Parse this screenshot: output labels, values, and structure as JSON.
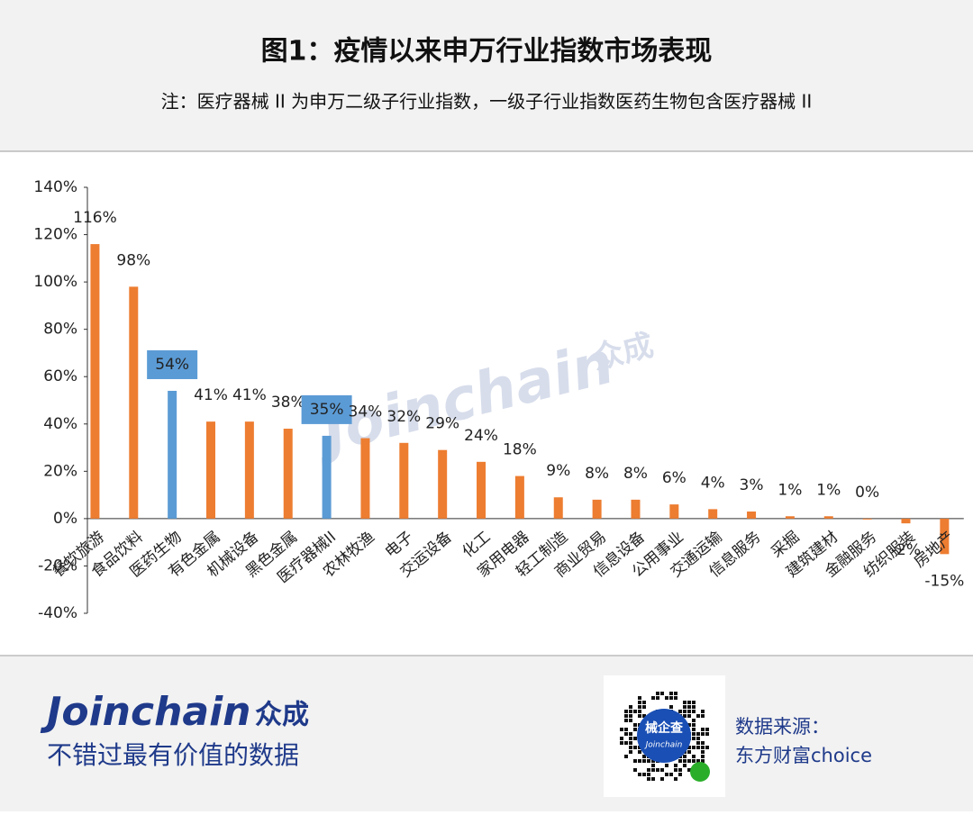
{
  "header": {
    "title": "图1：疫情以来申万行业指数市场表现",
    "subtitle": "注：医疗器械 II 为申万二级子行业指数，一级子行业指数医药生物包含医疗器械 II"
  },
  "watermark": {
    "brand": "Joinchain",
    "brand_cn": "众成"
  },
  "footer": {
    "brand": "Joinchain",
    "brand_cn": "众成",
    "slogan": "不错过最有价值的数据",
    "qr_title": "械企查",
    "qr_sub": "Joinchain",
    "source_label": "数据来源：",
    "source": "东方财富choice"
  },
  "chart_data": {
    "type": "bar",
    "categories": [
      "餐饮旅游",
      "食品饮料",
      "医药生物",
      "有色金属",
      "机械设备",
      "黑色金属",
      "医疗器械II",
      "农林牧渔",
      "电子",
      "交运设备",
      "化工",
      "家用电器",
      "轻工制造",
      "商业贸易",
      "信息设备",
      "公用事业",
      "交通运输",
      "信息服务",
      "采掘",
      "建筑建材",
      "金融服务",
      "纺织服装",
      "房地产"
    ],
    "values": [
      116,
      98,
      54,
      41,
      41,
      38,
      35,
      34,
      32,
      29,
      24,
      18,
      9,
      8,
      8,
      6,
      4,
      3,
      1,
      1,
      0,
      -2,
      -15
    ],
    "value_labels": [
      "116%",
      "98%",
      "54%",
      "41%",
      "41%",
      "38%",
      "35%",
      "34%",
      "32%",
      "29%",
      "24%",
      "18%",
      "9%",
      "8%",
      "8%",
      "6%",
      "4%",
      "3%",
      "1%",
      "1%",
      "0%",
      "-2%",
      "-15%"
    ],
    "colors": [
      "#ed7d31",
      "#ed7d31",
      "#5b9bd5",
      "#ed7d31",
      "#ed7d31",
      "#ed7d31",
      "#5b9bd5",
      "#ed7d31",
      "#ed7d31",
      "#ed7d31",
      "#ed7d31",
      "#ed7d31",
      "#ed7d31",
      "#ed7d31",
      "#ed7d31",
      "#ed7d31",
      "#ed7d31",
      "#ed7d31",
      "#ed7d31",
      "#ed7d31",
      "#ed7d31",
      "#ed7d31",
      "#ed7d31"
    ],
    "highlight_color": "#5b9bd5",
    "ylim": [
      -40,
      140
    ],
    "yticks": [
      {
        "value": -40,
        "label": "-40%"
      },
      {
        "value": -20,
        "label": "-20%"
      },
      {
        "value": 0,
        "label": "0%"
      },
      {
        "value": 20,
        "label": "20%"
      },
      {
        "value": 40,
        "label": "40%"
      },
      {
        "value": 60,
        "label": "60%"
      },
      {
        "value": 80,
        "label": "80%"
      },
      {
        "value": 100,
        "label": "100%"
      },
      {
        "value": 120,
        "label": "120%"
      },
      {
        "value": 140,
        "label": "140%"
      }
    ],
    "grid": false
  }
}
